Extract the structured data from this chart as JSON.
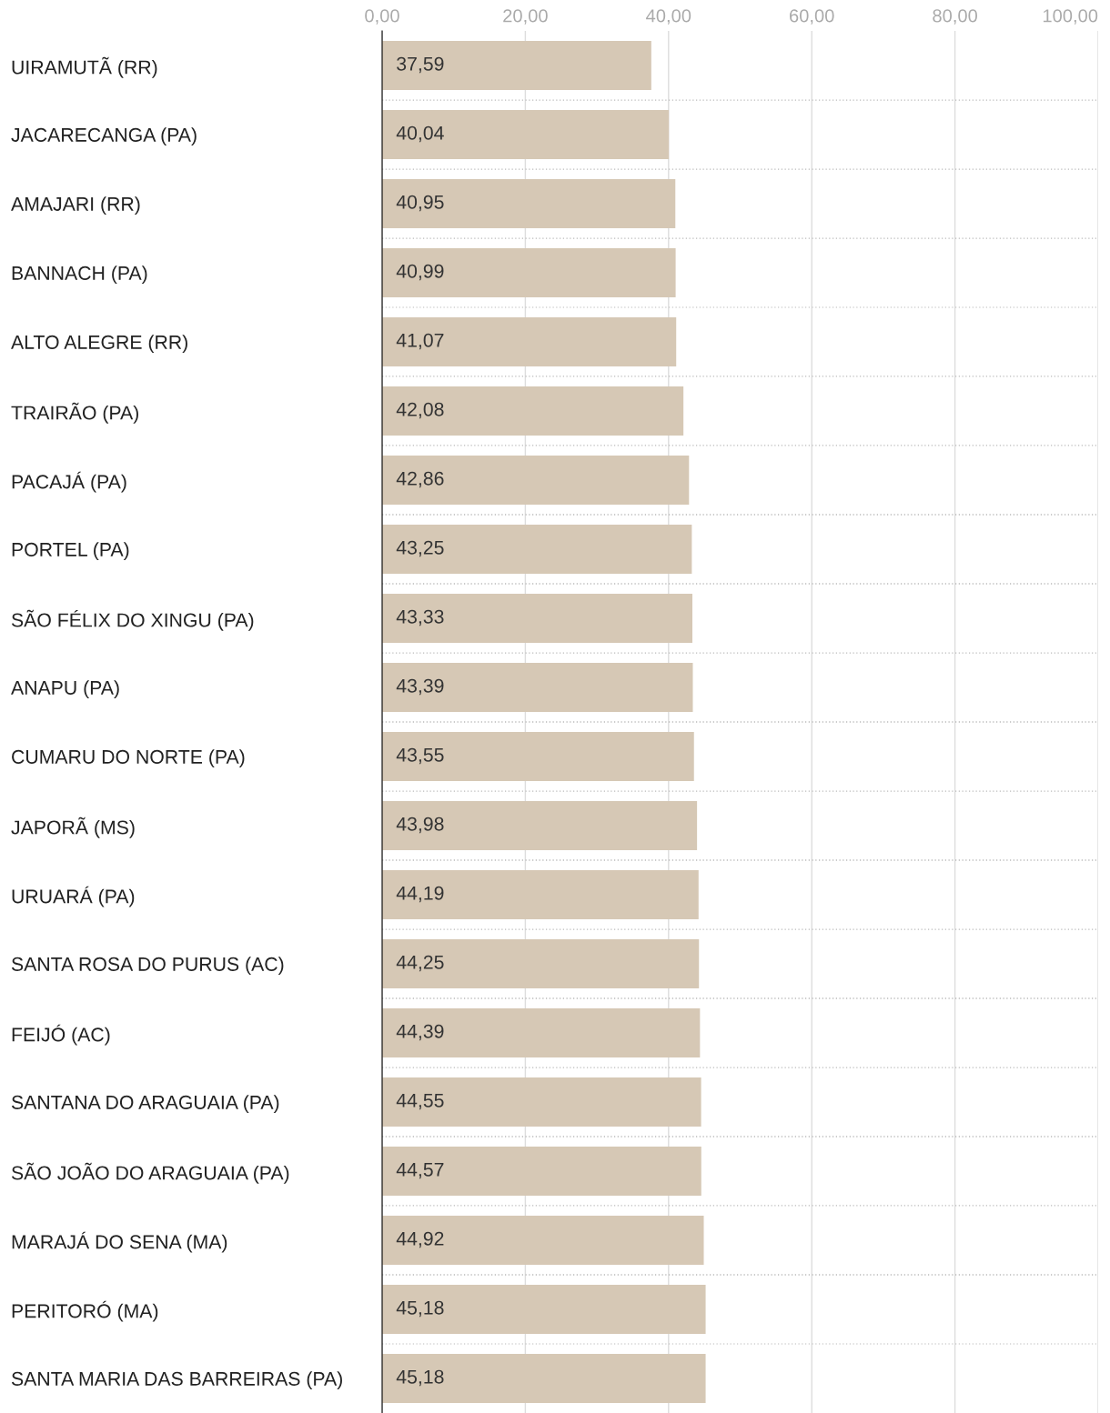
{
  "chart_data": {
    "type": "bar",
    "orientation": "horizontal",
    "categories": [
      "UIRAMUTÃ (RR)",
      "JACARECANGA (PA)",
      "AMAJARI (RR)",
      "BANNACH (PA)",
      "ALTO ALEGRE (RR)",
      "TRAIRÃO (PA)",
      "PACAJÁ (PA)",
      "PORTEL (PA)",
      "SÃO FÉLIX DO XINGU (PA)",
      "ANAPU (PA)",
      "CUMARU DO NORTE (PA)",
      "JAPORÃ (MS)",
      "URUARÁ (PA)",
      "SANTA ROSA DO PURUS (AC)",
      "FEIJÓ (AC)",
      "SANTANA DO ARAGUAIA (PA)",
      "SÃO JOÃO DO ARAGUAIA (PA)",
      "MARAJÁ DO SENA (MA)",
      "PERITORÓ (MA)",
      "SANTA MARIA DAS BARREIRAS (PA)"
    ],
    "values": [
      37.59,
      40.04,
      40.95,
      40.99,
      41.07,
      42.08,
      42.86,
      43.25,
      43.33,
      43.39,
      43.55,
      43.98,
      44.19,
      44.25,
      44.39,
      44.55,
      44.57,
      44.92,
      45.18,
      45.18
    ],
    "value_labels": [
      "37,59",
      "40,04",
      "40,95",
      "40,99",
      "41,07",
      "42,08",
      "42,86",
      "43,25",
      "43,33",
      "43,39",
      "43,55",
      "43,98",
      "44,19",
      "44,25",
      "44,39",
      "44,55",
      "44,57",
      "44,92",
      "45,18",
      "45,18"
    ],
    "color": "#d6c8b5",
    "xlim": [
      0,
      100
    ],
    "xticks": [
      {
        "value": 0,
        "label": "0,00"
      },
      {
        "value": 20,
        "label": "20,00"
      },
      {
        "value": 40,
        "label": "40,00"
      },
      {
        "value": 60,
        "label": "60,00"
      },
      {
        "value": 80,
        "label": "80,00"
      },
      {
        "value": 100,
        "label": "100,00"
      }
    ],
    "grid": true
  }
}
